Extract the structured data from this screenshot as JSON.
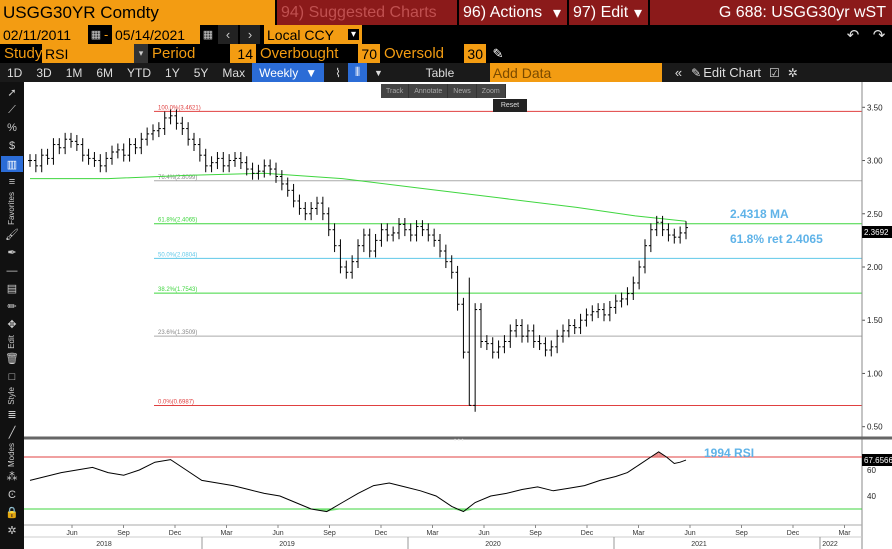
{
  "header": {
    "ticker": "USGG30YR Comdty",
    "suggested": "94) Suggested Charts",
    "actions": "96) Actions",
    "edit": "97) Edit",
    "chart_id": "G 688: USGG30yr wST"
  },
  "dates": {
    "start": "02/11/2011",
    "end": "05/14/2021",
    "currency": "Local CCY"
  },
  "study": {
    "label": "Study",
    "name": "RSI",
    "period_label": "Period",
    "period": "14",
    "overbought_label": "Overbought",
    "overbought": "70",
    "oversold_label": "Oversold",
    "oversold": "30"
  },
  "ranges": [
    "1D",
    "3D",
    "1M",
    "6M",
    "YTD",
    "1Y",
    "5Y",
    "Max"
  ],
  "frequency": "Weekly",
  "table_label": "Table",
  "add_data_placeholder": "Add Data",
  "edit_chart": "Edit Chart",
  "float_toolbar": [
    "Track",
    "Annotate",
    "News",
    "Zoom"
  ],
  "reset_label": "Reset",
  "sidebar_labels": {
    "favorites": "Favorites",
    "edit": "Edit",
    "style": "Style",
    "modes": "Modes"
  },
  "colors": {
    "amber": "#f39c12",
    "maroon": "#8b1a1a",
    "ma_line": "#3fd63f",
    "annotation": "#5fb3e8",
    "rsi_overbought_fill": "#e57373",
    "rsi_oversold_fill": "#66e066"
  },
  "chart_data": {
    "type": "line",
    "main": {
      "y_ticks": [
        "3.50",
        "3.00",
        "2.50",
        "2.00",
        "1.50",
        "1.00",
        "0.50"
      ],
      "ylim": [
        0.45,
        3.7
      ],
      "current_price": "2.3692",
      "ma_value_label": "2.4318 MA",
      "ret_label": "61.8% ret 2.4065",
      "fib_levels": [
        {
          "label": "100.0%(3.4621)",
          "value": 3.4621,
          "color": "#e04040"
        },
        {
          "label": "76.4%(2.8099)",
          "value": 2.8099,
          "color": "#aaaaaa"
        },
        {
          "label": "61.8%(2.4065)",
          "value": 2.4065,
          "color": "#3fd63f"
        },
        {
          "label": "50.0%(2.0804)",
          "value": 2.0804,
          "color": "#5fc8e8"
        },
        {
          "label": "38.2%(1.7543)",
          "value": 1.7543,
          "color": "#3fd63f"
        },
        {
          "label": "23.6%(1.3509)",
          "value": 1.3509,
          "color": "#aaaaaa"
        },
        {
          "label": "0.0%(0.6987)",
          "value": 0.6987,
          "color": "#e04040"
        }
      ],
      "price_series": [
        [
          0,
          3.0
        ],
        [
          3,
          2.95
        ],
        [
          6,
          3.05
        ],
        [
          9,
          3.02
        ],
        [
          12,
          3.15
        ],
        [
          15,
          3.12
        ],
        [
          18,
          3.2
        ],
        [
          21,
          3.18
        ],
        [
          24,
          3.15
        ],
        [
          27,
          3.05
        ],
        [
          30,
          3.02
        ],
        [
          33,
          3.0
        ],
        [
          36,
          2.95
        ],
        [
          39,
          3.02
        ],
        [
          42,
          3.08
        ],
        [
          45,
          3.1
        ],
        [
          48,
          3.05
        ],
        [
          51,
          3.15
        ],
        [
          54,
          3.12
        ],
        [
          57,
          3.2
        ],
        [
          60,
          3.25
        ],
        [
          63,
          3.28
        ],
        [
          66,
          3.3
        ],
        [
          69,
          3.4
        ],
        [
          72,
          3.42
        ],
        [
          75,
          3.35
        ],
        [
          78,
          3.3
        ],
        [
          81,
          3.2
        ],
        [
          84,
          3.15
        ],
        [
          87,
          3.05
        ],
        [
          90,
          2.95
        ],
        [
          93,
          2.98
        ],
        [
          96,
          3.02
        ],
        [
          99,
          2.95
        ],
        [
          102,
          3.0
        ],
        [
          105,
          3.02
        ],
        [
          108,
          2.98
        ],
        [
          111,
          2.92
        ],
        [
          114,
          2.88
        ],
        [
          117,
          2.9
        ],
        [
          120,
          2.95
        ],
        [
          123,
          2.92
        ],
        [
          126,
          2.85
        ],
        [
          129,
          2.78
        ],
        [
          132,
          2.72
        ],
        [
          135,
          2.62
        ],
        [
          138,
          2.55
        ],
        [
          141,
          2.5
        ],
        [
          144,
          2.55
        ],
        [
          147,
          2.6
        ],
        [
          150,
          2.5
        ],
        [
          153,
          2.35
        ],
        [
          156,
          2.2
        ],
        [
          159,
          2.0
        ],
        [
          162,
          1.95
        ],
        [
          165,
          2.05
        ],
        [
          168,
          2.2
        ],
        [
          171,
          2.3
        ],
        [
          174,
          2.15
        ],
        [
          177,
          2.25
        ],
        [
          180,
          2.35
        ],
        [
          183,
          2.3
        ],
        [
          186,
          2.32
        ],
        [
          189,
          2.4
        ],
        [
          192,
          2.35
        ],
        [
          195,
          2.3
        ],
        [
          198,
          2.38
        ],
        [
          201,
          2.35
        ],
        [
          204,
          2.3
        ],
        [
          207,
          2.25
        ],
        [
          210,
          2.15
        ],
        [
          213,
          2.05
        ],
        [
          216,
          1.95
        ],
        [
          219,
          1.65
        ],
        [
          222,
          1.2
        ],
        [
          225,
          0.7
        ],
        [
          228,
          1.6
        ],
        [
          231,
          1.3
        ],
        [
          234,
          1.28
        ],
        [
          237,
          1.2
        ],
        [
          240,
          1.25
        ],
        [
          243,
          1.3
        ],
        [
          246,
          1.4
        ],
        [
          249,
          1.45
        ],
        [
          252,
          1.35
        ],
        [
          255,
          1.4
        ],
        [
          258,
          1.3
        ],
        [
          261,
          1.28
        ],
        [
          264,
          1.22
        ],
        [
          267,
          1.25
        ],
        [
          270,
          1.35
        ],
        [
          273,
          1.4
        ],
        [
          276,
          1.45
        ],
        [
          279,
          1.43
        ],
        [
          282,
          1.5
        ],
        [
          285,
          1.55
        ],
        [
          288,
          1.58
        ],
        [
          291,
          1.6
        ],
        [
          294,
          1.55
        ],
        [
          297,
          1.62
        ],
        [
          300,
          1.68
        ],
        [
          303,
          1.7
        ],
        [
          306,
          1.75
        ],
        [
          309,
          1.85
        ],
        [
          312,
          2.0
        ],
        [
          315,
          2.2
        ],
        [
          318,
          2.35
        ],
        [
          321,
          2.42
        ],
        [
          324,
          2.35
        ],
        [
          327,
          2.3
        ],
        [
          330,
          2.28
        ],
        [
          333,
          2.32
        ],
        [
          336,
          2.37
        ]
      ],
      "ma_series": [
        [
          0,
          2.83
        ],
        [
          40,
          2.83
        ],
        [
          80,
          2.86
        ],
        [
          120,
          2.88
        ],
        [
          160,
          2.83
        ],
        [
          200,
          2.74
        ],
        [
          240,
          2.65
        ],
        [
          280,
          2.56
        ],
        [
          310,
          2.48
        ],
        [
          336,
          2.43
        ]
      ],
      "x_ticks": [
        "Jun",
        "Sep",
        "Dec",
        "Mar",
        "Jun",
        "Sep",
        "Dec",
        "Mar",
        "Jun",
        "Sep",
        "Dec",
        "Mar",
        "Jun",
        "Sep",
        "Dec",
        "Mar"
      ],
      "year_ticks": [
        "2018",
        "2019",
        "2020",
        "2021",
        "2022"
      ]
    },
    "rsi": {
      "label": "1994 RSI",
      "current": "67.6566",
      "y_ticks": [
        "60",
        "40"
      ],
      "overbought": 70,
      "oversold": 30,
      "ylim": [
        20,
        80
      ],
      "series": [
        [
          0,
          52
        ],
        [
          8,
          55
        ],
        [
          16,
          58
        ],
        [
          24,
          60
        ],
        [
          32,
          62
        ],
        [
          40,
          58
        ],
        [
          48,
          56
        ],
        [
          56,
          60
        ],
        [
          64,
          66
        ],
        [
          72,
          68
        ],
        [
          80,
          60
        ],
        [
          88,
          52
        ],
        [
          96,
          50
        ],
        [
          104,
          48
        ],
        [
          112,
          45
        ],
        [
          120,
          42
        ],
        [
          128,
          40
        ],
        [
          136,
          35
        ],
        [
          144,
          30
        ],
        [
          152,
          28
        ],
        [
          160,
          35
        ],
        [
          168,
          42
        ],
        [
          176,
          48
        ],
        [
          184,
          50
        ],
        [
          192,
          47
        ],
        [
          200,
          44
        ],
        [
          208,
          40
        ],
        [
          216,
          32
        ],
        [
          222,
          28
        ],
        [
          228,
          35
        ],
        [
          236,
          40
        ],
        [
          244,
          42
        ],
        [
          252,
          45
        ],
        [
          260,
          47
        ],
        [
          268,
          44
        ],
        [
          276,
          46
        ],
        [
          284,
          48
        ],
        [
          292,
          52
        ],
        [
          300,
          55
        ],
        [
          306,
          58
        ],
        [
          312,
          64
        ],
        [
          318,
          70
        ],
        [
          322,
          74
        ],
        [
          326,
          70
        ],
        [
          330,
          65
        ],
        [
          333,
          66
        ],
        [
          336,
          67.66
        ]
      ]
    }
  }
}
